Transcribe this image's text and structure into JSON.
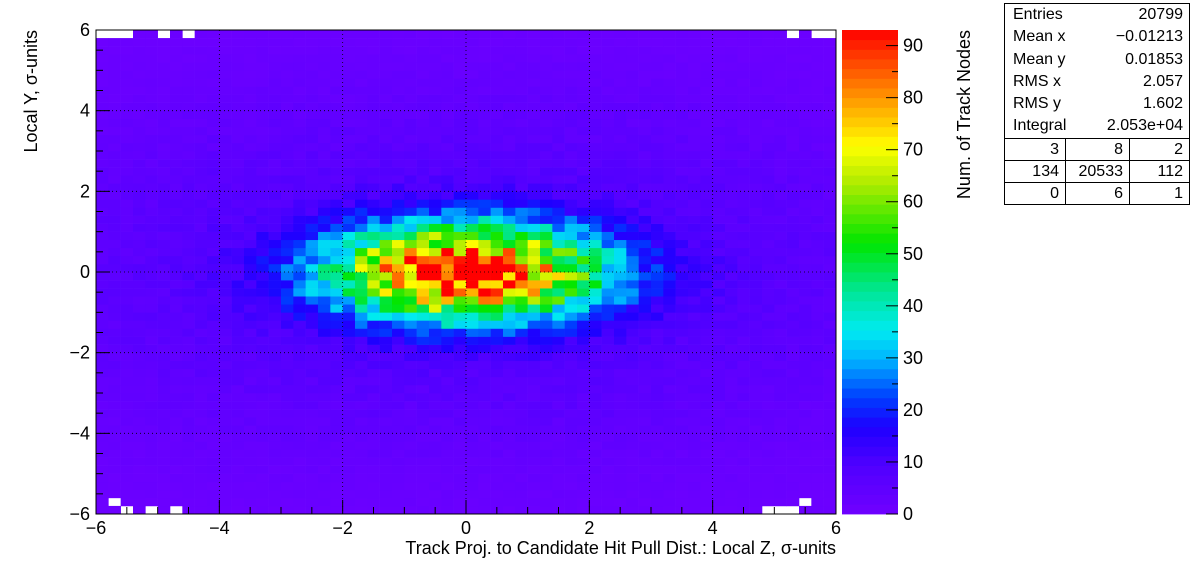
{
  "chart_data": {
    "type": "heatmap",
    "title": "",
    "xlabel": "Track Proj. to Candidate Hit Pull Dist.: Local Z, σ-units",
    "ylabel": "Local Y, σ-units",
    "zlabel": "Num. of Track Nodes",
    "xlim": [
      -6,
      6
    ],
    "ylim": [
      -6,
      6
    ],
    "zlim": [
      0,
      93
    ],
    "x_ticks": [
      "−6",
      "−4",
      "−2",
      "0",
      "2",
      "4",
      "6"
    ],
    "y_ticks": [
      "−6",
      "−4",
      "−2",
      "0",
      "2",
      "4",
      "6"
    ],
    "z_ticks": [
      "0",
      "10",
      "20",
      "30",
      "40",
      "50",
      "60",
      "70",
      "80",
      "90"
    ],
    "bins": {
      "nx": 60,
      "ny": 60
    },
    "distribution": {
      "model": "2D Gaussian core plus flat background, read from color scale",
      "x_center": 0.0,
      "y_center": 0.0,
      "x_sigma": 1.5,
      "y_sigma": 0.8,
      "peak_count": 92,
      "background_count": 4,
      "peak_region": {
        "x": [
          -0.5,
          0.3
        ],
        "y": [
          -0.1,
          0.3
        ]
      }
    },
    "grid": true,
    "colormap": "kBird-like rainbow (violet→blue→cyan→green→yellow→orange→red)"
  },
  "stats_box": {
    "entries_label": "Entries",
    "entries": "20799",
    "meanx_label": "Mean x",
    "meanx": "−0.01213",
    "meany_label": "Mean y",
    "meany": "0.01853",
    "rmsx_label": "RMS x",
    "rmsx": "2.057",
    "rmsy_label": "RMS y",
    "rmsy": "1.602",
    "integral_label": "Integral",
    "integral": "2.053e+04",
    "grid": [
      [
        "3",
        "8",
        "2"
      ],
      [
        "134",
        "20533",
        "112"
      ],
      [
        "0",
        "6",
        "1"
      ]
    ]
  },
  "colors": {
    "frame": "#000000",
    "grid": "#000000",
    "background": "#ffffff"
  }
}
